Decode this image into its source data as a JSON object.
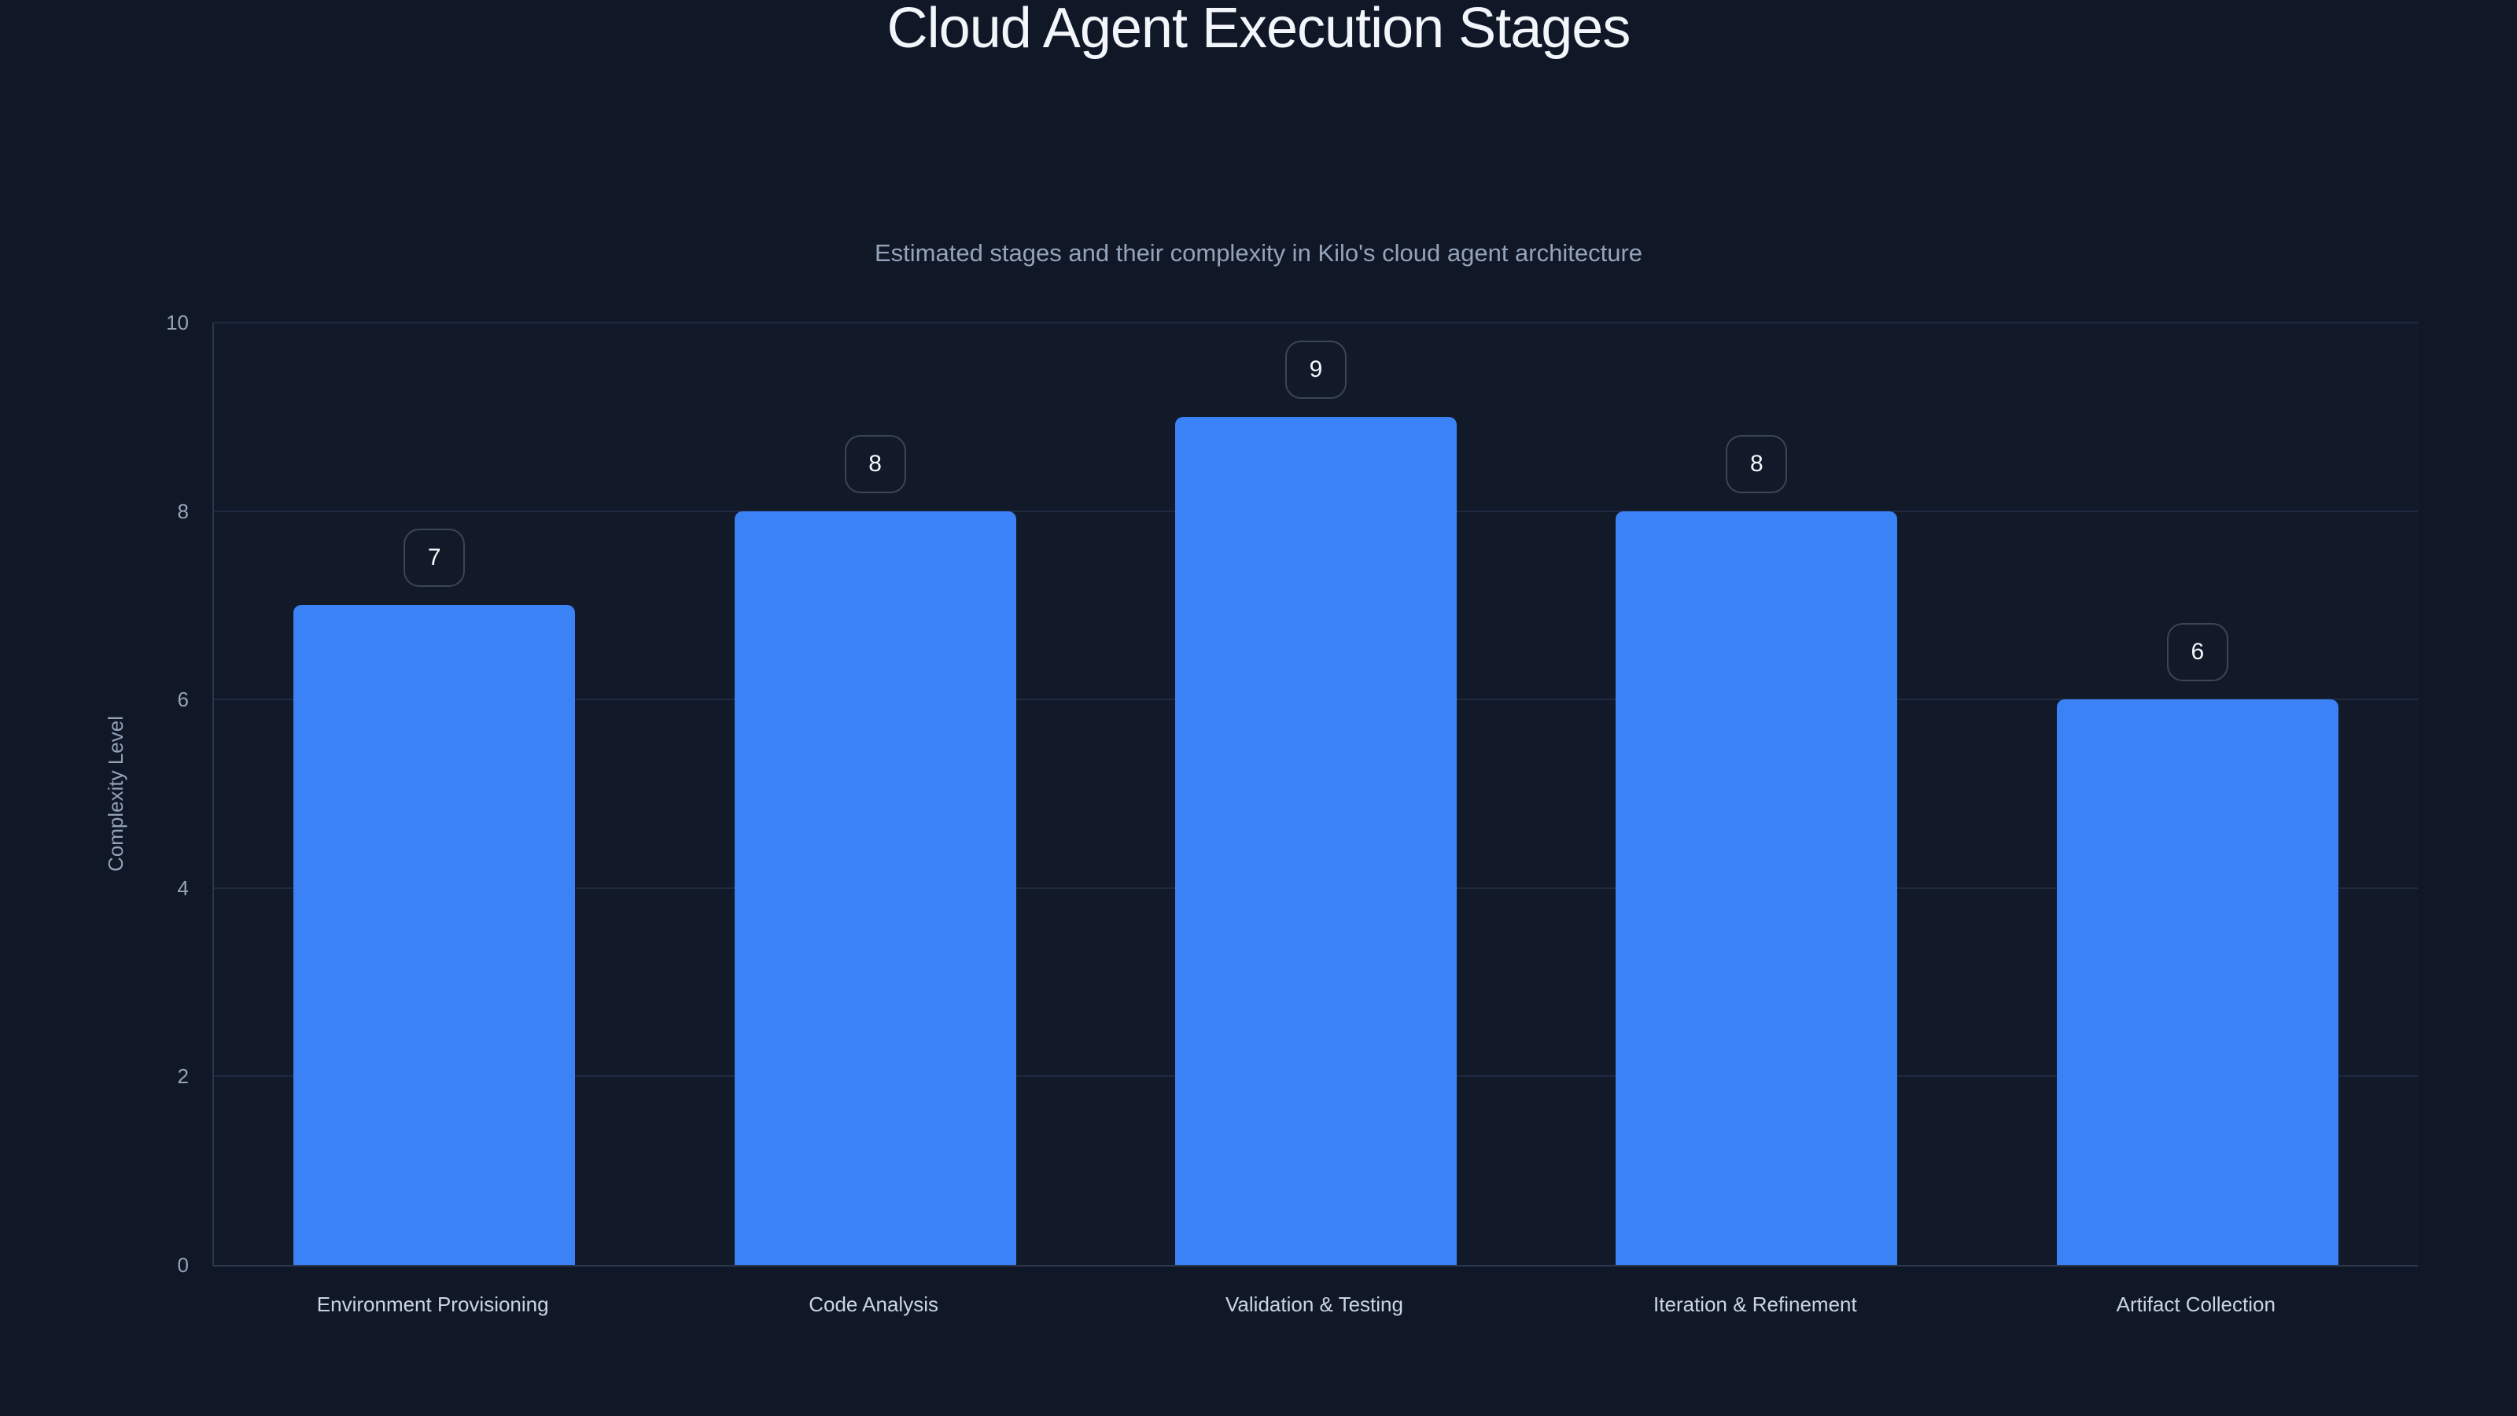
{
  "chart_data": {
    "type": "bar",
    "title": "Cloud Agent Execution Stages",
    "subtitle": "Estimated stages and their complexity in Kilo's cloud agent architecture",
    "ylabel": "Complexity Level",
    "xlabel": "",
    "categories": [
      "Environment Provisioning",
      "Code Analysis",
      "Validation & Testing",
      "Iteration & Refinement",
      "Artifact Collection"
    ],
    "values": [
      7,
      8,
      9,
      8,
      6
    ],
    "value_labels": [
      "7",
      "8",
      "9",
      "8",
      "6"
    ],
    "ylim": [
      0,
      10
    ],
    "yticks": [
      0,
      2,
      4,
      6,
      8,
      10
    ],
    "grid": true,
    "legend_position": "none",
    "colors": {
      "background": "#101828",
      "bar": "#3b82f6",
      "gridline": "#1f2940",
      "axis": "#2c374d",
      "title_text": "#f2f5f9",
      "subtitle_text": "#94a3b8",
      "tick_text": "#97a3b6",
      "category_text": "#cbd5e1",
      "value_text": "#f4f7fa",
      "value_box_border": "#3b4557"
    }
  }
}
